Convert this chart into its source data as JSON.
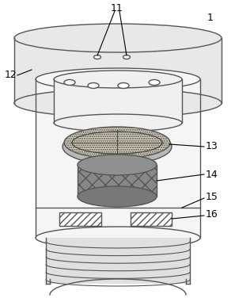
{
  "bg_color": "#ffffff",
  "line_color": "#555555",
  "figsize": [
    2.97,
    3.76
  ],
  "dpi": 100,
  "label_1": "1",
  "label_11": "11",
  "label_12": "12",
  "label_13": "13",
  "label_14": "14",
  "label_15": "15",
  "label_16": "16",
  "cap_fill": "#e8e8e8",
  "inner_fill": "#f0f0f0",
  "sensor13_fill": "#d4cdb8",
  "sensor14_fill": "#707070",
  "thread_fill": "#e0e0e0",
  "body_fill": "#f5f5f5"
}
